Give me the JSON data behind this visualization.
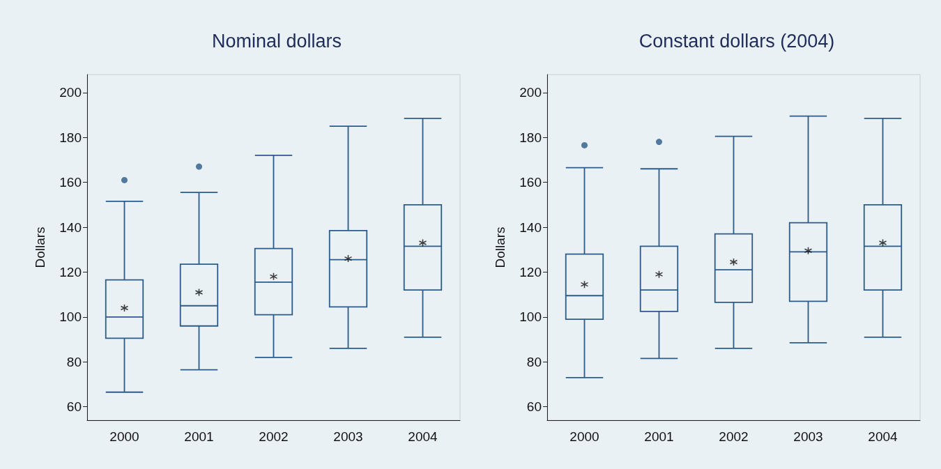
{
  "chart_data": [
    {
      "type": "box",
      "title": "Nominal dollars",
      "ylabel": "Dollars",
      "categories": [
        "2000",
        "2001",
        "2002",
        "2003",
        "2004"
      ],
      "series": [
        {
          "color": "#2b5b8a",
          "boxes": [
            {
              "low": 66.5,
              "q1": 90.5,
              "median": 100,
              "q3": 116.5,
              "high": 151.5,
              "mean": 104,
              "outliers": [
                161
              ]
            },
            {
              "low": 76.5,
              "q1": 96,
              "median": 105,
              "q3": 123.5,
              "high": 155.5,
              "mean": 111,
              "outliers": [
                167
              ]
            },
            {
              "low": 82,
              "q1": 101,
              "median": 115.5,
              "q3": 130.5,
              "high": 172,
              "mean": 118
            },
            {
              "low": 86,
              "q1": 104.5,
              "median": 125.5,
              "q3": 138.5,
              "high": 185,
              "mean": 126
            },
            {
              "low": 91,
              "q1": 112,
              "median": 131.5,
              "q3": 150,
              "high": 188.5,
              "mean": 133
            }
          ]
        }
      ],
      "ylim": [
        54,
        208
      ],
      "yticks": [
        60,
        80,
        100,
        120,
        140,
        160,
        180,
        200
      ],
      "grid": false
    },
    {
      "type": "box",
      "title": "Constant dollars (2004)",
      "ylabel": "Dollars",
      "categories": [
        "2000",
        "2001",
        "2002",
        "2003",
        "2004"
      ],
      "series": [
        {
          "color": "#2b5b8a",
          "boxes": [
            {
              "low": 73,
              "q1": 99,
              "median": 109.5,
              "q3": 128,
              "high": 166.5,
              "mean": 114.5,
              "outliers": [
                176.5
              ]
            },
            {
              "low": 81.5,
              "q1": 102.5,
              "median": 112,
              "q3": 131.5,
              "high": 166,
              "mean": 119,
              "outliers": [
                178
              ]
            },
            {
              "low": 86,
              "q1": 106.5,
              "median": 121,
              "q3": 137,
              "high": 180.5,
              "mean": 124.5
            },
            {
              "low": 88.5,
              "q1": 107,
              "median": 129,
              "q3": 142,
              "high": 189.5,
              "mean": 129.5
            },
            {
              "low": 91,
              "q1": 112,
              "median": 131.5,
              "q3": 150,
              "high": 188.5,
              "mean": 133
            }
          ]
        }
      ],
      "ylim": [
        54,
        208
      ],
      "yticks": [
        60,
        80,
        100,
        120,
        140,
        160,
        180,
        200
      ],
      "grid": false
    }
  ]
}
